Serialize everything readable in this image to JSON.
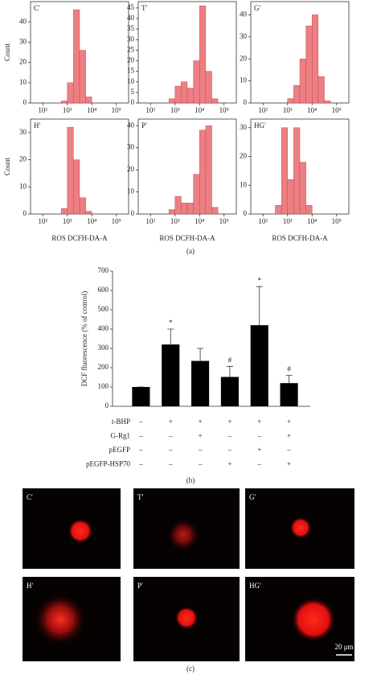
{
  "chart_data": [
    {
      "type": "histogram",
      "label": "C′",
      "ylabel": "Count",
      "bins": [
        31.6,
        56.2,
        100,
        178,
        316,
        562,
        1000,
        1778,
        3162,
        5623,
        10000,
        17783,
        31623,
        56234,
        100000,
        177828,
        316228
      ],
      "counts": [
        0,
        0,
        0,
        0,
        0,
        1,
        10,
        46,
        26,
        3,
        0,
        0,
        0,
        0,
        0,
        0
      ],
      "xlog": true,
      "xlim": [
        31.6,
        316228
      ],
      "xticks": [
        {
          "value": 100,
          "label": "10²"
        },
        {
          "value": 1000,
          "label": "10³"
        },
        {
          "value": 10000,
          "label": "10⁴"
        },
        {
          "value": 100000,
          "label": "10⁵"
        }
      ],
      "ylim": [
        0,
        50
      ],
      "yticks": [
        0,
        10,
        20,
        30,
        40
      ],
      "color": "#ec7f84"
    },
    {
      "type": "histogram",
      "label": "T′",
      "bins": [
        31.6,
        56.2,
        100,
        178,
        316,
        562,
        1000,
        1778,
        3162,
        5623,
        10000,
        17783,
        31623,
        56234,
        100000,
        177828,
        316228
      ],
      "counts": [
        0,
        0,
        0,
        0,
        0,
        2,
        8,
        10,
        7,
        20,
        46,
        15,
        2,
        0,
        0,
        0
      ],
      "xlog": true,
      "xlim": [
        31.6,
        316228
      ],
      "xticks": [
        {
          "value": 100,
          "label": "10²"
        },
        {
          "value": 1000,
          "label": "10³"
        },
        {
          "value": 10000,
          "label": "10⁴"
        },
        {
          "value": 100000,
          "label": "10⁵"
        }
      ],
      "ylim": [
        0,
        48
      ],
      "yticks": [
        0,
        5,
        10,
        15,
        20,
        25,
        30,
        35,
        40,
        45
      ],
      "color": "#ec7f84"
    },
    {
      "type": "histogram",
      "label": "G′",
      "bins": [
        31.6,
        56.2,
        100,
        178,
        316,
        562,
        1000,
        1778,
        3162,
        5623,
        10000,
        17783,
        31623,
        56234,
        100000,
        177828,
        316228
      ],
      "counts": [
        0,
        0,
        0,
        0,
        0,
        0,
        2,
        8,
        20,
        35,
        40,
        12,
        1,
        0,
        0,
        0
      ],
      "xlog": true,
      "xlim": [
        31.6,
        316228
      ],
      "xticks": [
        {
          "value": 100,
          "label": "10²"
        },
        {
          "value": 1000,
          "label": "10³"
        },
        {
          "value": 10000,
          "label": "10⁴"
        },
        {
          "value": 100000,
          "label": "10⁵"
        }
      ],
      "ylim": [
        0,
        46
      ],
      "yticks": [
        0,
        10,
        20,
        30,
        40
      ],
      "color": "#ec7f84"
    },
    {
      "type": "histogram",
      "label": "H′",
      "ylabel": "Count",
      "xlabel": "ROS DCFH-DA-A",
      "bins": [
        31.6,
        56.2,
        100,
        178,
        316,
        562,
        1000,
        1778,
        3162,
        5623,
        10000,
        17783,
        31623,
        56234,
        100000,
        177828,
        316228
      ],
      "counts": [
        0,
        0,
        0,
        0,
        0,
        2,
        32,
        20,
        6,
        1,
        0,
        0,
        0,
        0,
        0,
        0
      ],
      "xlog": true,
      "xlim": [
        31.6,
        316228
      ],
      "xticks": [
        {
          "value": 100,
          "label": "10²"
        },
        {
          "value": 1000,
          "label": "10³"
        },
        {
          "value": 10000,
          "label": "10⁴"
        },
        {
          "value": 100000,
          "label": "10⁵"
        }
      ],
      "ylim": [
        0,
        35
      ],
      "yticks": [
        0,
        10,
        20,
        30
      ],
      "color": "#ec7f84"
    },
    {
      "type": "histogram",
      "label": "P′",
      "xlabel": "ROS DCFH-DA-A",
      "bins": [
        31.6,
        56.2,
        100,
        178,
        316,
        562,
        1000,
        1778,
        3162,
        5623,
        10000,
        17783,
        31623,
        56234,
        100000,
        177828,
        316228
      ],
      "counts": [
        0,
        0,
        0,
        0,
        0,
        2,
        8,
        5,
        5,
        18,
        38,
        40,
        3,
        0,
        0,
        0
      ],
      "xlog": true,
      "xlim": [
        31.6,
        316228
      ],
      "xticks": [
        {
          "value": 100,
          "label": "10²"
        },
        {
          "value": 1000,
          "label": "10³"
        },
        {
          "value": 10000,
          "label": "10⁴"
        },
        {
          "value": 100000,
          "label": "10⁵"
        }
      ],
      "ylim": [
        0,
        43
      ],
      "yticks": [
        0,
        10,
        20,
        30,
        40
      ],
      "color": "#ec7f84"
    },
    {
      "type": "histogram",
      "label": "HG′",
      "xlabel": "ROS DCFH-DA-A",
      "bins": [
        31.6,
        56.2,
        100,
        178,
        316,
        562,
        1000,
        1778,
        3162,
        5623,
        10000,
        17783,
        31623,
        56234,
        100000,
        177828,
        316228
      ],
      "counts": [
        0,
        0,
        0,
        0,
        3,
        30,
        12,
        30,
        18,
        3,
        0,
        0,
        0,
        0,
        0,
        0
      ],
      "xlog": true,
      "xlim": [
        31.6,
        316228
      ],
      "xticks": [
        {
          "value": 100,
          "label": "10²"
        },
        {
          "value": 1000,
          "label": "10³"
        },
        {
          "value": 10000,
          "label": "10⁴"
        },
        {
          "value": 100000,
          "label": "10⁵"
        }
      ],
      "ylim": [
        0,
        33
      ],
      "yticks": [
        0,
        10,
        20,
        30
      ],
      "color": "#ec7f84"
    },
    {
      "type": "bar",
      "ylabel": "DCF fluorescence (% of control)",
      "values": [
        100,
        320,
        235,
        152,
        420,
        120
      ],
      "errors": [
        0,
        80,
        65,
        55,
        200,
        40
      ],
      "markers": [
        null,
        "*",
        null,
        "#",
        "*",
        "#"
      ],
      "ylim": [
        0,
        700
      ],
      "yticks": [
        0,
        100,
        200,
        300,
        400,
        500,
        600,
        700
      ],
      "color": "#000000",
      "treatments": [
        {
          "name": "t-BHP",
          "signs": [
            "–",
            "+",
            "+",
            "+",
            "+",
            "+"
          ]
        },
        {
          "name": "G-Rg1",
          "signs": [
            "–",
            "–",
            "+",
            "–",
            "–",
            "+"
          ]
        },
        {
          "name": "pEGFP",
          "signs": [
            "–",
            "–",
            "–",
            "–",
            "+",
            "–"
          ]
        },
        {
          "name": "pEGFP-HSP70",
          "signs": [
            "–",
            "–",
            "–",
            "+",
            "–",
            "+"
          ]
        }
      ]
    }
  ],
  "panel_c": {
    "labels": [
      "C′",
      "T′",
      "G′",
      "H′",
      "P′",
      "HG′"
    ],
    "scale_bar": "20 μm"
  },
  "captions": [
    "(a)",
    "(b)",
    "(c)"
  ]
}
